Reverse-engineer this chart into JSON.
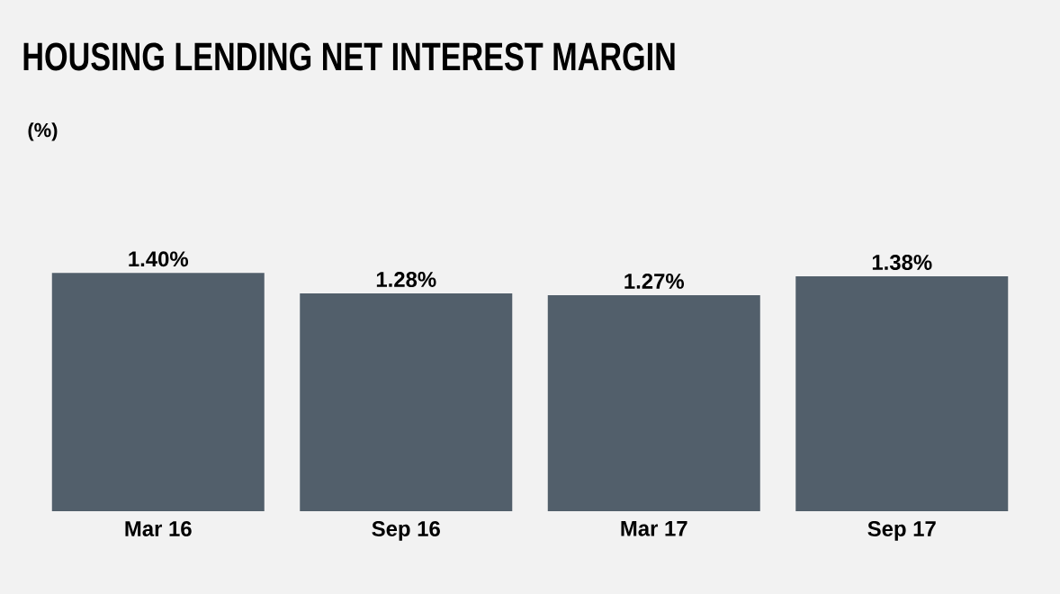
{
  "chart_data": {
    "type": "bar",
    "title": "HOUSING LENDING NET INTEREST MARGIN",
    "annotations": [
      "(%)"
    ],
    "categories": [
      "Mar 16",
      "Sep 16",
      "Mar 17",
      "Sep 17"
    ],
    "values": [
      1.4,
      1.28,
      1.27,
      1.38
    ],
    "value_labels": [
      "1.40%",
      "1.28%",
      "1.27%",
      "1.38%"
    ],
    "color": "#525f6b"
  }
}
